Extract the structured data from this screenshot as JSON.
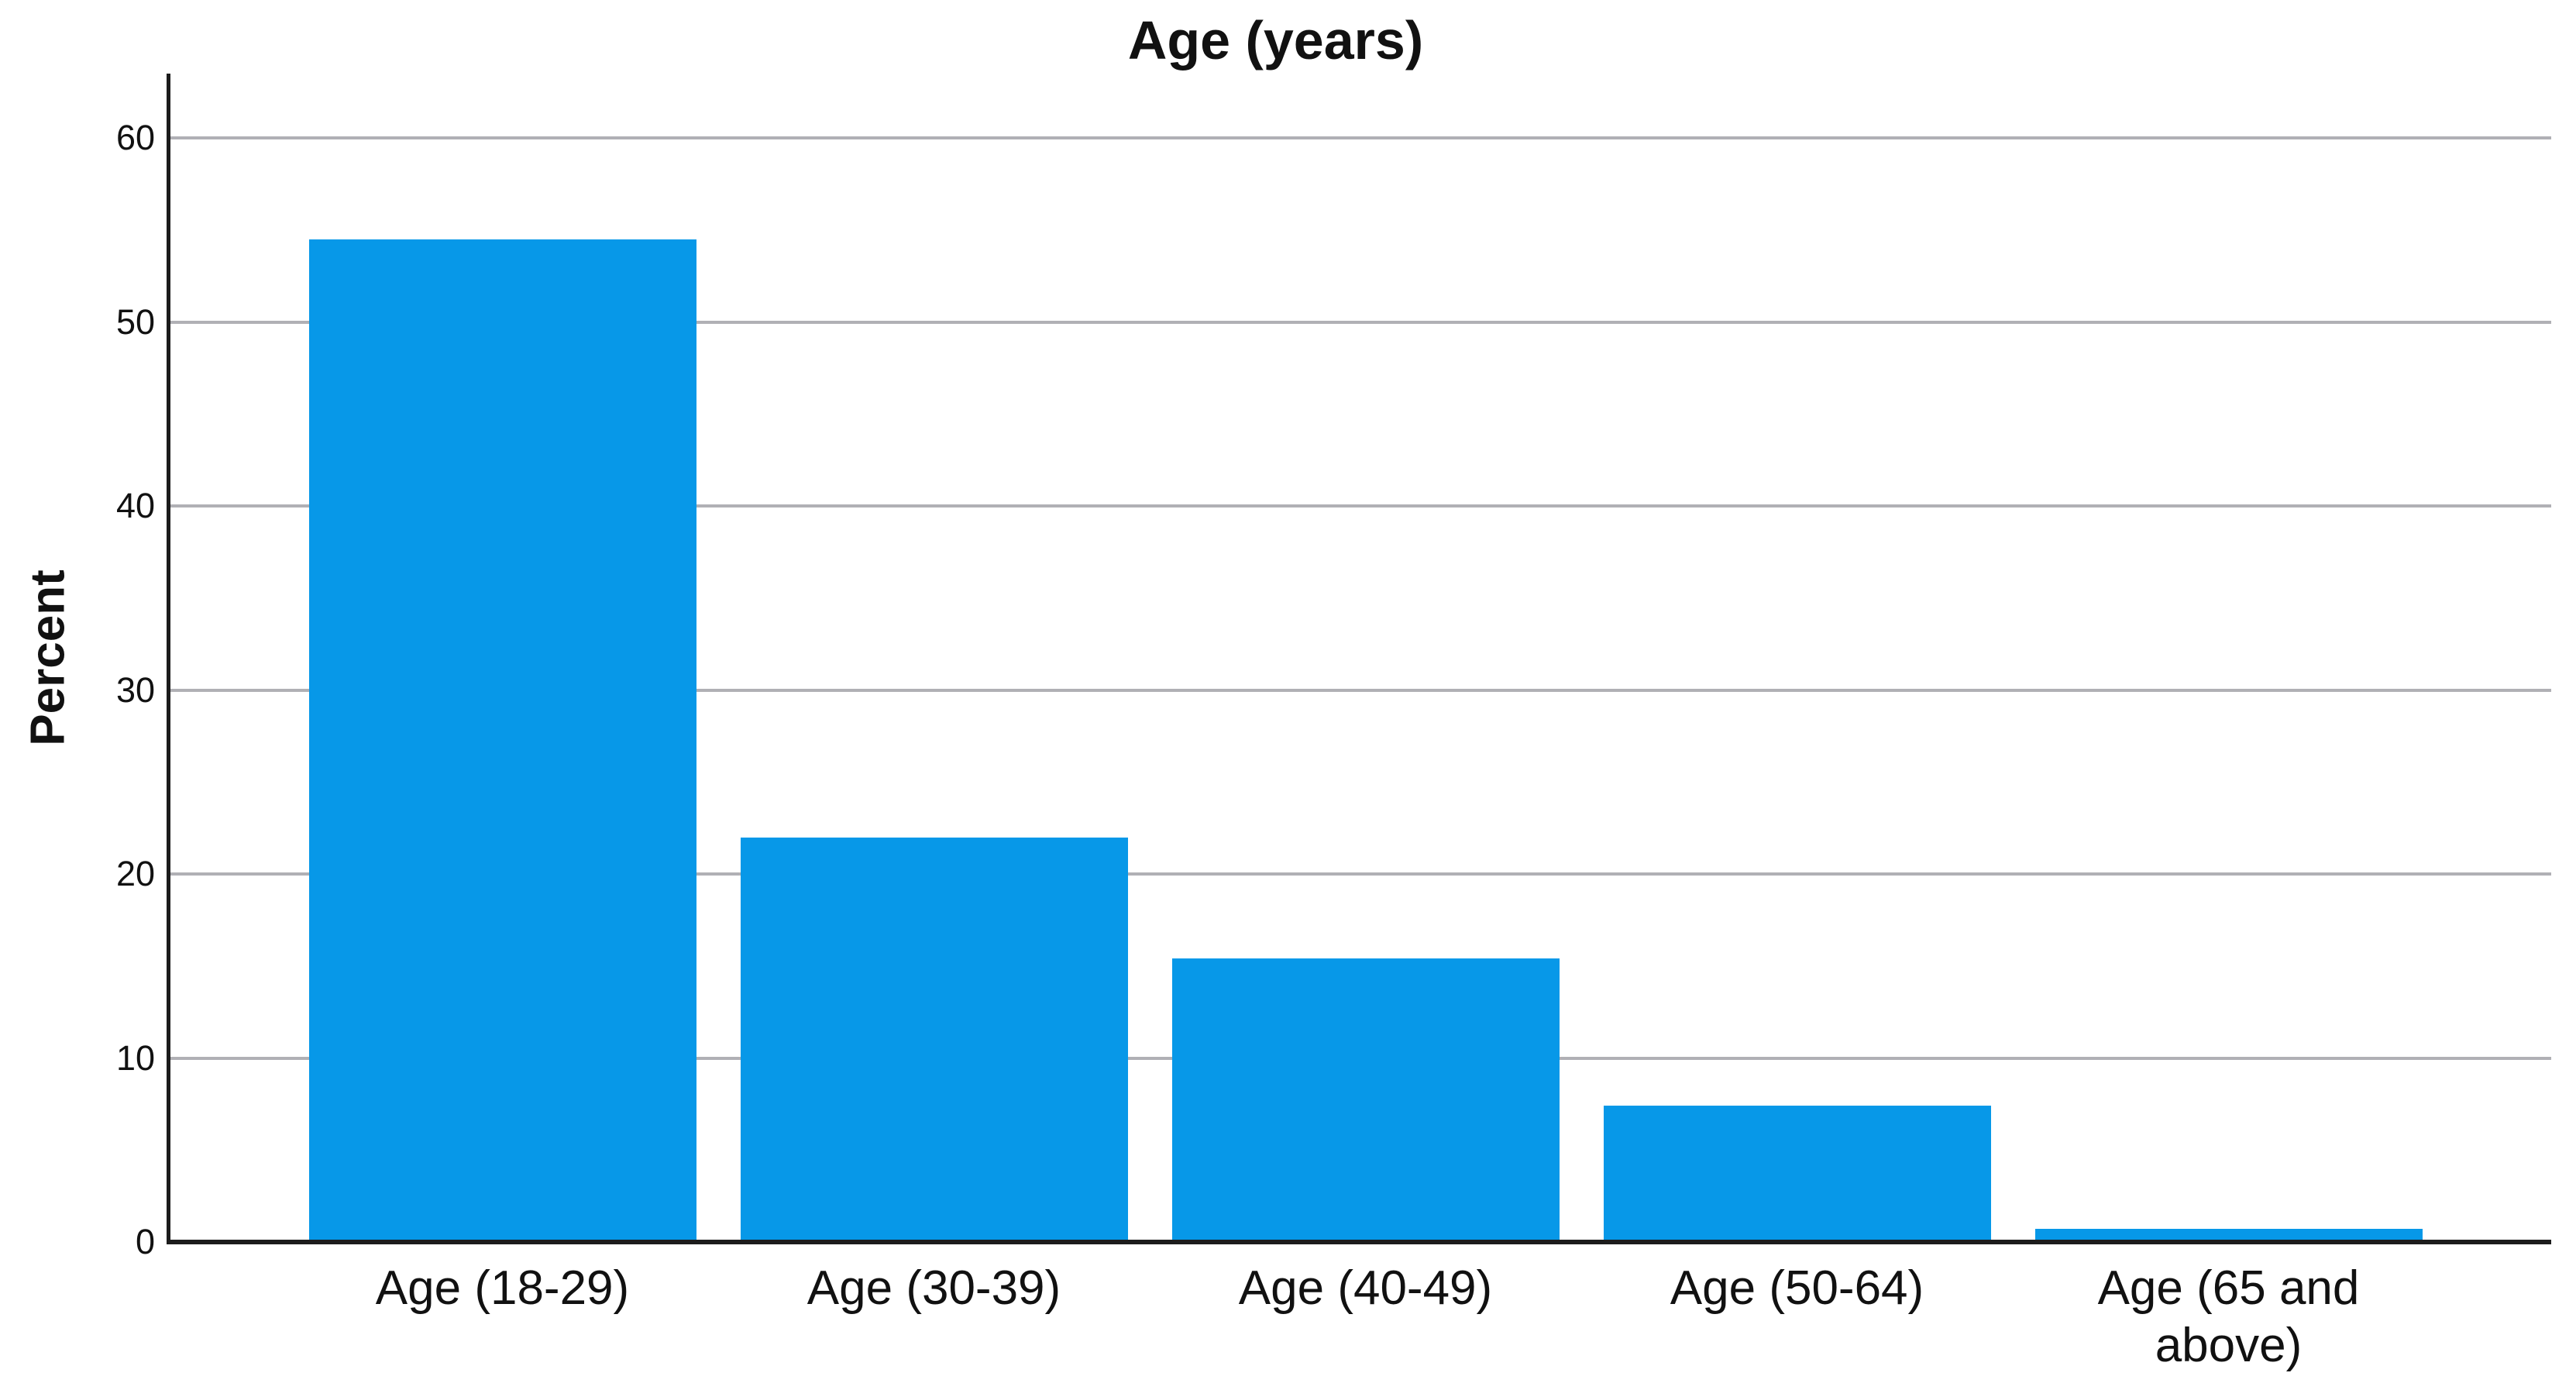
{
  "chart_data": {
    "type": "bar",
    "title": "Age (years)",
    "xlabel": "",
    "ylabel": "Percent",
    "categories": [
      "Age (18-29)",
      "Age (30-39)",
      "Age (40-49)",
      "Age (50-64)",
      "Age (65 and above)"
    ],
    "values": [
      54.5,
      22.0,
      15.4,
      7.4,
      0.7
    ],
    "category_label_lines": [
      [
        "Age (18-29)"
      ],
      [
        "Age (30-39)"
      ],
      [
        "Age (40-49)"
      ],
      [
        "Age (50-64)"
      ],
      [
        "Age (65 and",
        "above)"
      ]
    ],
    "yticks": [
      0,
      10,
      20,
      30,
      40,
      50,
      60
    ],
    "ylim": [
      0,
      63.5
    ],
    "grid": "horizontal-gridlines-behind-bars",
    "legend": "none",
    "bar_color": "#0798E8",
    "gridline_color": "#b0b0b5",
    "axis_color": "#1c1c1c",
    "text_color": "#111111"
  }
}
